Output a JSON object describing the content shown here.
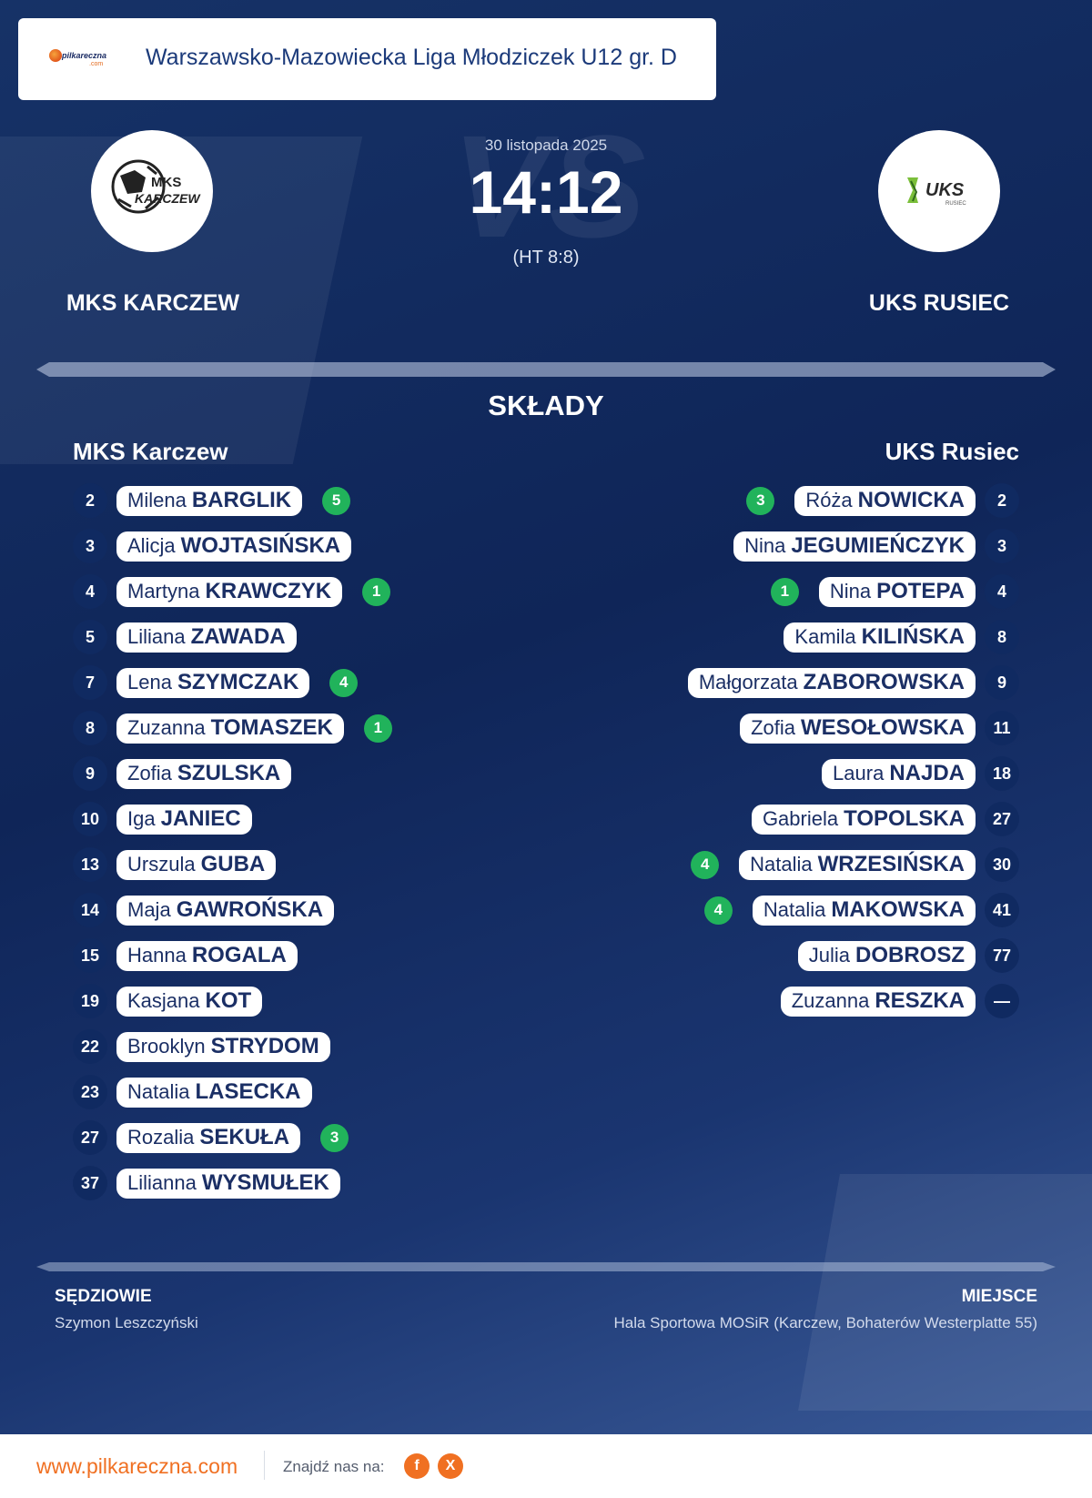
{
  "league": {
    "logo_text": "pilkareczna",
    "logo_sub": ".com",
    "name": "Warszawsko-Mazowiecka Liga Młodziczek U12 gr. D"
  },
  "match": {
    "date": "30 listopada 2025",
    "score": "14:12",
    "halftime": "(HT 8:8)",
    "vs_watermark": "VS"
  },
  "home": {
    "name": "MKS KARCZEW",
    "logo_icon": "mks-karczew-crest",
    "logo_text_1": "MKS",
    "logo_text_2": "KARCZEW"
  },
  "away": {
    "name": "UKS RUSIEC",
    "logo_icon": "uks-rusiec-crest",
    "logo_text": "UKS",
    "logo_sub": "RUSIEC"
  },
  "lineups": {
    "title": "SKŁADY",
    "home_title": "MKS Karczew",
    "away_title": "UKS Rusiec",
    "home_players": [
      {
        "number": "2",
        "first": "Milena",
        "last": "BARGLIK",
        "goals": "5"
      },
      {
        "number": "3",
        "first": "Alicja",
        "last": "WOJTASIŃSKA",
        "goals": ""
      },
      {
        "number": "4",
        "first": "Martyna",
        "last": "KRAWCZYK",
        "goals": "1"
      },
      {
        "number": "5",
        "first": "Liliana",
        "last": "ZAWADA",
        "goals": ""
      },
      {
        "number": "7",
        "first": "Lena",
        "last": "SZYMCZAK",
        "goals": "4"
      },
      {
        "number": "8",
        "first": "Zuzanna",
        "last": "TOMASZEK",
        "goals": "1"
      },
      {
        "number": "9",
        "first": "Zofia",
        "last": "SZULSKA",
        "goals": ""
      },
      {
        "number": "10",
        "first": "Iga",
        "last": "JANIEC",
        "goals": ""
      },
      {
        "number": "13",
        "first": "Urszula",
        "last": "GUBA",
        "goals": ""
      },
      {
        "number": "14",
        "first": "Maja",
        "last": "GAWROŃSKA",
        "goals": ""
      },
      {
        "number": "15",
        "first": "Hanna",
        "last": "ROGALA",
        "goals": ""
      },
      {
        "number": "19",
        "first": "Kasjana",
        "last": "KOT",
        "goals": ""
      },
      {
        "number": "22",
        "first": "Brooklyn",
        "last": "STRYDOM",
        "goals": ""
      },
      {
        "number": "23",
        "first": "Natalia",
        "last": "LASECKA",
        "goals": ""
      },
      {
        "number": "27",
        "first": "Rozalia",
        "last": "SEKUŁA",
        "goals": "3"
      },
      {
        "number": "37",
        "first": "Lilianna",
        "last": "WYSMUŁEK",
        "goals": ""
      }
    ],
    "away_players": [
      {
        "number": "2",
        "first": "Róża",
        "last": "NOWICKA",
        "goals": "3"
      },
      {
        "number": "3",
        "first": "Nina",
        "last": "JEGUMIEŃCZYK",
        "goals": ""
      },
      {
        "number": "4",
        "first": "Nina",
        "last": "POTEPA",
        "goals": "1"
      },
      {
        "number": "8",
        "first": "Kamila",
        "last": "KILIŃSKA",
        "goals": ""
      },
      {
        "number": "9",
        "first": "Małgorzata",
        "last": "ZABOROWSKA",
        "goals": ""
      },
      {
        "number": "11",
        "first": "Zofia",
        "last": "WESOŁOWSKA",
        "goals": ""
      },
      {
        "number": "18",
        "first": "Laura",
        "last": "NAJDA",
        "goals": ""
      },
      {
        "number": "27",
        "first": "Gabriela",
        "last": "TOPOLSKA",
        "goals": ""
      },
      {
        "number": "30",
        "first": "Natalia",
        "last": "WRZESIŃSKA",
        "goals": "4"
      },
      {
        "number": "41",
        "first": "Natalia",
        "last": "MAKOWSKA",
        "goals": "4"
      },
      {
        "number": "77",
        "first": "Julia",
        "last": "DOBROSZ",
        "goals": ""
      },
      {
        "number": "—",
        "first": "Zuzanna",
        "last": "RESZKA",
        "goals": ""
      }
    ]
  },
  "officials": {
    "referees_label": "SĘDZIOWIE",
    "referees": "Szymon Leszczyński",
    "venue_label": "MIEJSCE",
    "venue": "Hala Sportowa MOSiR (Karczew, Bohaterów Westerplatte 55)"
  },
  "footer": {
    "site": "www.pilkareczna.com",
    "find_us": "Znajdź nas na:",
    "facebook_label": "f",
    "facebook_icon": "facebook-icon",
    "x_label": "X",
    "x_icon": "x-icon"
  },
  "colors": {
    "background_dark": "#0f2558",
    "accent_orange": "#f07022",
    "goal_green": "#21b35b",
    "number_badge": "#102a61",
    "pill_text": "#1b2f65"
  }
}
